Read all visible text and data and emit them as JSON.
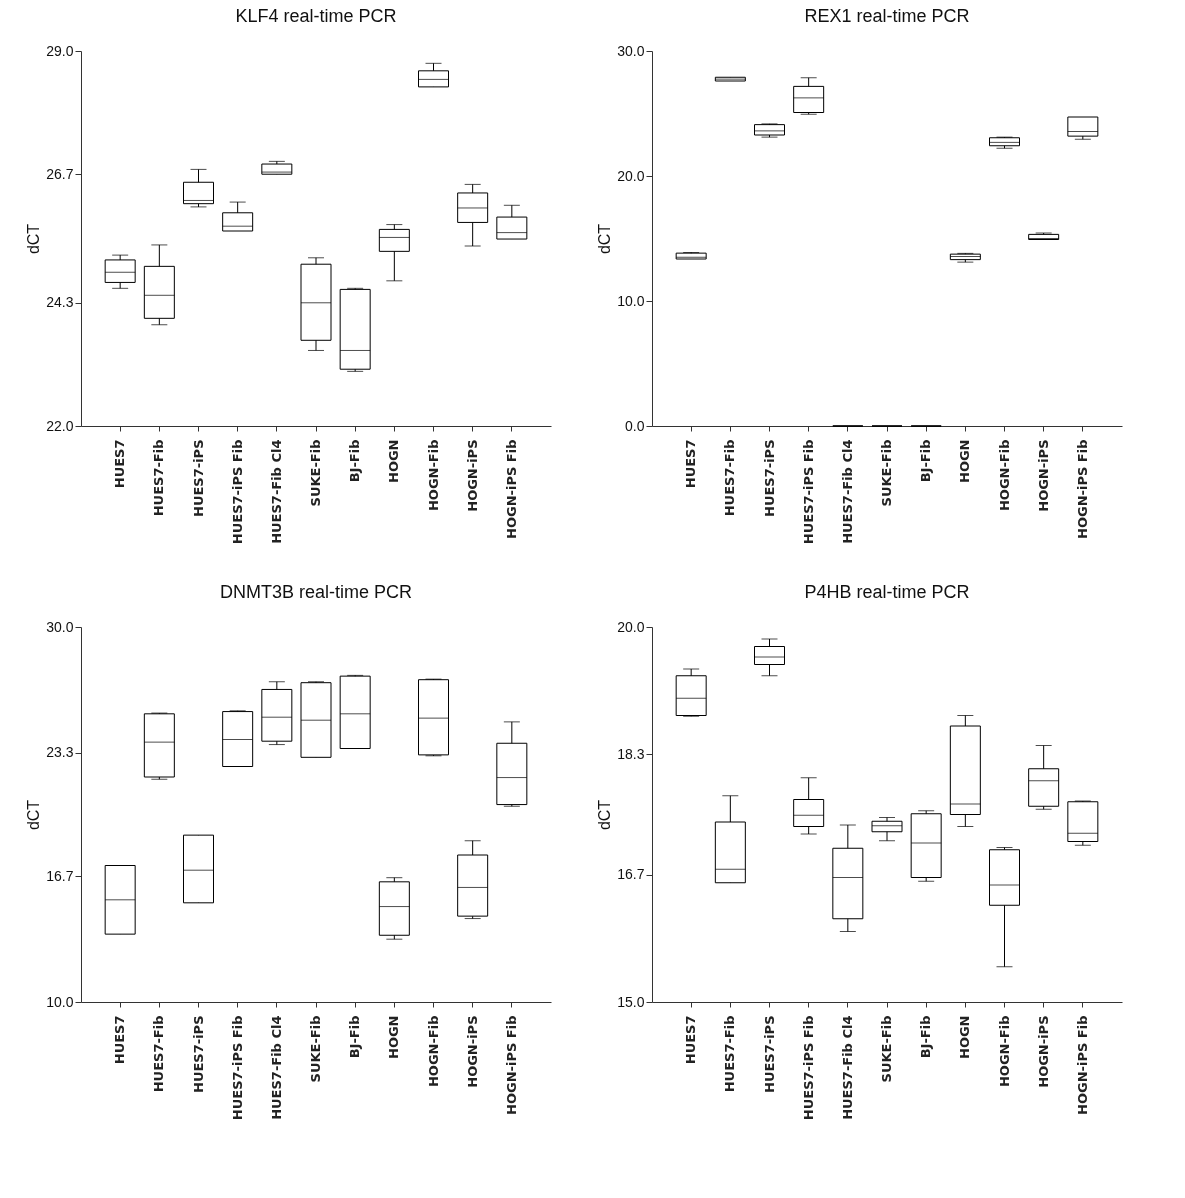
{
  "chart_data": [
    {
      "type": "box",
      "title": "KLF4 real-time PCR",
      "ylabel": "dCT",
      "categories": [
        "HUES7",
        "HUES7-Fib",
        "HUES7-iPS",
        "HUES7-iPS Fib",
        "HUES7-Fib Cl4",
        "SUKE-Fib",
        "BJ-Fib",
        "HOGN",
        "HOGN-Fib",
        "HOGN-iPS",
        "HOGN-iPS Fib"
      ],
      "boxes": [
        {
          "low": 24.57,
          "q1": 24.68,
          "median": 24.87,
          "q3": 25.1,
          "high": 25.19
        },
        {
          "low": 23.89,
          "q1": 24.01,
          "median": 24.44,
          "q3": 24.98,
          "high": 25.38
        },
        {
          "low": 26.09,
          "q1": 26.15,
          "median": 26.21,
          "q3": 26.55,
          "high": 26.79
        },
        {
          "low": 25.64,
          "q1": 25.64,
          "median": 25.73,
          "q3": 25.98,
          "high": 26.18
        },
        {
          "low": 26.7,
          "q1": 26.7,
          "median": 26.74,
          "q3": 26.89,
          "high": 26.94
        },
        {
          "low": 23.41,
          "q1": 23.6,
          "median": 24.3,
          "q3": 25.02,
          "high": 25.14
        },
        {
          "low": 23.02,
          "q1": 23.06,
          "median": 23.41,
          "q3": 24.55,
          "high": 24.57
        },
        {
          "low": 24.71,
          "q1": 25.26,
          "median": 25.52,
          "q3": 25.67,
          "high": 25.76
        },
        {
          "low": 28.33,
          "q1": 28.33,
          "median": 28.47,
          "q3": 28.63,
          "high": 28.77
        },
        {
          "low": 25.36,
          "q1": 25.8,
          "median": 26.07,
          "q3": 26.35,
          "high": 26.51
        },
        {
          "low": 25.49,
          "q1": 25.49,
          "median": 25.61,
          "q3": 25.9,
          "high": 26.12
        }
      ],
      "ylim": [
        22,
        29
      ],
      "yticks": [
        {
          "value": 22,
          "label": "22.0"
        },
        24.3,
        26.7,
        {
          "value": 29,
          "label": "29.0"
        }
      ]
    },
    {
      "type": "box",
      "title": "REX1 real-time PCR",
      "ylabel": "dCT",
      "categories": [
        "HUES7",
        "HUES7-Fib",
        "HUES7-iPS",
        "HUES7-iPS Fib",
        "HUES7-Fib Cl4",
        "SUKE-Fib",
        "BJ-Fib",
        "HOGN",
        "HOGN-Fib",
        "HOGN-iPS",
        "HOGN-iPS Fib"
      ],
      "boxes": [
        {
          "low": 13.36,
          "q1": 13.36,
          "median": 13.5,
          "q3": 13.83,
          "high": 13.89
        },
        {
          "low": 27.6,
          "q1": 27.6,
          "median": 27.75,
          "q3": 27.9,
          "high": 27.9
        },
        {
          "low": 23.11,
          "q1": 23.28,
          "median": 23.61,
          "q3": 24.11,
          "high": 24.17
        },
        {
          "low": 24.94,
          "q1": 25.08,
          "median": 26.25,
          "q3": 27.17,
          "high": 27.86
        },
        {
          "low": 0,
          "q1": 0,
          "median": 0,
          "q3": 0,
          "high": 0
        },
        {
          "low": 0,
          "q1": 0,
          "median": 0,
          "q3": 0,
          "high": 0
        },
        {
          "low": 0,
          "q1": 0,
          "median": 0,
          "q3": 0,
          "high": 0
        },
        {
          "low": 13.11,
          "q1": 13.31,
          "median": 13.56,
          "q3": 13.75,
          "high": 13.81
        },
        {
          "low": 22.22,
          "q1": 22.42,
          "median": 22.69,
          "q3": 23.06,
          "high": 23.11
        },
        {
          "low": 14.92,
          "q1": 14.92,
          "median": 15.0,
          "q3": 15.33,
          "high": 15.44
        },
        {
          "low": 22.94,
          "q1": 23.19,
          "median": 23.56,
          "q3": 24.72,
          "high": 24.72
        }
      ],
      "ylim": [
        0,
        30
      ],
      "yticks": [
        {
          "value": 0,
          "label": "0.0"
        },
        {
          "value": 10,
          "label": "10.0"
        },
        {
          "value": 20,
          "label": "20.0"
        },
        {
          "value": 30,
          "label": "30.0"
        }
      ]
    },
    {
      "type": "box",
      "title": "DNMT3B real-time PCR",
      "ylabel": "dCT",
      "categories": [
        "HUES7",
        "HUES7-Fib",
        "HUES7-iPS",
        "HUES7-iPS Fib",
        "HUES7-Fib Cl4",
        "SUKE-Fib",
        "BJ-Fib",
        "HOGN",
        "HOGN-Fib",
        "HOGN-iPS",
        "HOGN-iPS Fib"
      ],
      "boxes": [
        {
          "low": 13.62,
          "q1": 13.62,
          "median": 15.45,
          "q3": 17.28,
          "high": 17.28
        },
        {
          "low": 21.88,
          "q1": 22.0,
          "median": 23.86,
          "q3": 25.37,
          "high": 25.41
        },
        {
          "low": 15.29,
          "q1": 15.29,
          "median": 17.03,
          "q3": 18.9,
          "high": 18.9
        },
        {
          "low": 22.56,
          "q1": 22.56,
          "median": 24.0,
          "q3": 25.49,
          "high": 25.53
        },
        {
          "low": 23.73,
          "q1": 23.91,
          "median": 25.19,
          "q3": 26.67,
          "high": 27.08
        },
        {
          "low": 23.05,
          "q1": 23.05,
          "median": 25.03,
          "q3": 27.03,
          "high": 27.08
        },
        {
          "low": 23.52,
          "q1": 23.52,
          "median": 25.37,
          "q3": 27.38,
          "high": 27.42
        },
        {
          "low": 13.35,
          "q1": 13.56,
          "median": 15.09,
          "q3": 16.41,
          "high": 16.63
        },
        {
          "low": 23.13,
          "q1": 23.18,
          "median": 25.14,
          "q3": 27.19,
          "high": 27.22
        },
        {
          "low": 14.45,
          "q1": 14.58,
          "median": 16.11,
          "q3": 17.84,
          "high": 18.6
        },
        {
          "low": 20.44,
          "q1": 20.53,
          "median": 21.97,
          "q3": 23.8,
          "high": 24.94
        }
      ],
      "ylim": [
        10,
        30
      ],
      "yticks": [
        {
          "value": 10,
          "label": "10.0"
        },
        16.7,
        23.3,
        {
          "value": 30,
          "label": "30.0"
        }
      ]
    },
    {
      "type": "box",
      "title": "P4HB real-time PCR",
      "ylabel": "dCT",
      "categories": [
        "HUES7",
        "HUES7-Fib",
        "HUES7-iPS",
        "HUES7-iPS Fib",
        "HUES7-Fib Cl4",
        "SUKE-Fib",
        "BJ-Fib",
        "HOGN",
        "HOGN-Fib",
        "HOGN-iPS",
        "HOGN-iPS Fib"
      ],
      "boxes": [
        {
          "low": 18.81,
          "q1": 18.82,
          "median": 19.05,
          "q3": 19.35,
          "high": 19.44
        },
        {
          "low": 16.59,
          "q1": 16.59,
          "median": 16.77,
          "q3": 17.4,
          "high": 17.75
        },
        {
          "low": 19.35,
          "q1": 19.5,
          "median": 19.6,
          "q3": 19.74,
          "high": 19.84
        },
        {
          "low": 17.24,
          "q1": 17.34,
          "median": 17.49,
          "q3": 17.7,
          "high": 17.99
        },
        {
          "low": 15.94,
          "q1": 16.11,
          "median": 16.66,
          "q3": 17.05,
          "high": 17.36
        },
        {
          "low": 17.15,
          "q1": 17.27,
          "median": 17.35,
          "q3": 17.41,
          "high": 17.46
        },
        {
          "low": 16.61,
          "q1": 16.66,
          "median": 17.12,
          "q3": 17.51,
          "high": 17.55
        },
        {
          "low": 17.34,
          "q1": 17.5,
          "median": 17.64,
          "q3": 18.68,
          "high": 18.82
        },
        {
          "low": 15.47,
          "q1": 16.29,
          "median": 16.56,
          "q3": 17.03,
          "high": 17.06
        },
        {
          "low": 17.57,
          "q1": 17.61,
          "median": 17.95,
          "q3": 18.11,
          "high": 18.42
        },
        {
          "low": 17.09,
          "q1": 17.14,
          "median": 17.25,
          "q3": 17.67,
          "high": 17.68
        }
      ],
      "ylim": [
        15,
        20
      ],
      "yticks": [
        {
          "value": 15,
          "label": "15.0"
        },
        16.7,
        18.3,
        {
          "value": 20,
          "label": "20.0"
        }
      ]
    }
  ]
}
